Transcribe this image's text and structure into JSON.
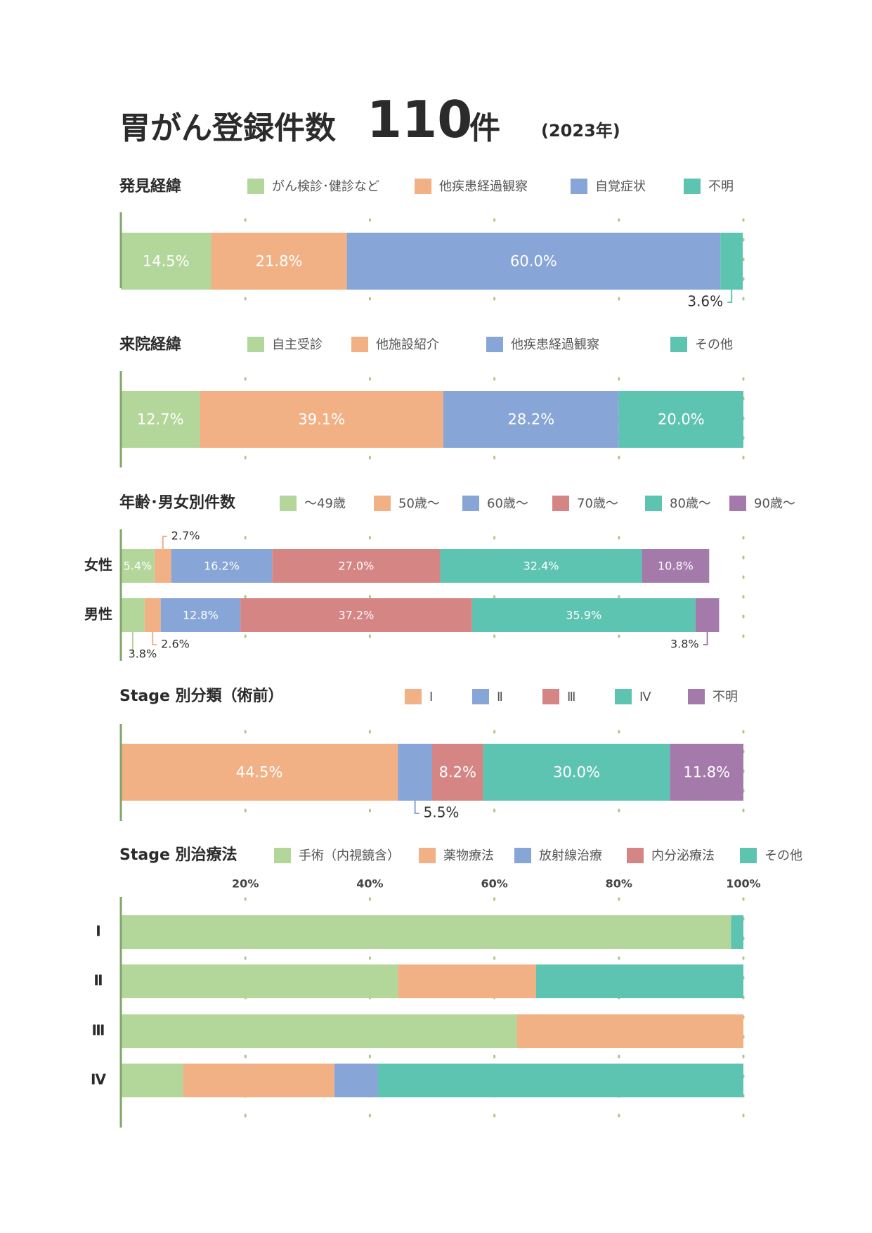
{
  "title": {
    "main": "胃がん登録件数",
    "count": "110",
    "unit": "件",
    "year": "(2023年)"
  },
  "chart_data": [
    {
      "id": "discovery",
      "type": "bar",
      "orientation": "horizontal-stacked",
      "title": "発見経緯",
      "legend": [
        {
          "label": "がん検診･健診など",
          "color": "#b3d69b"
        },
        {
          "label": "他疾患経過観察",
          "color": "#f2b184"
        },
        {
          "label": "自覚症状",
          "color": "#87a5d6"
        },
        {
          "label": "不明",
          "color": "#5ec4b2"
        }
      ],
      "rows": [
        {
          "label": "",
          "values": [
            14.5,
            21.8,
            60.0,
            3.6
          ],
          "labels": [
            "14.5%",
            "21.8%",
            "60.0%",
            "3.6%"
          ]
        }
      ],
      "xlim": [
        0,
        100
      ]
    },
    {
      "id": "visit",
      "type": "bar",
      "orientation": "horizontal-stacked",
      "title": "来院経緯",
      "legend": [
        {
          "label": "自主受診",
          "color": "#b3d69b"
        },
        {
          "label": "他施設紹介",
          "color": "#f2b184"
        },
        {
          "label": "他疾患経過観察",
          "color": "#87a5d6"
        },
        {
          "label": "その他",
          "color": "#5ec4b2"
        }
      ],
      "rows": [
        {
          "label": "",
          "values": [
            12.7,
            39.1,
            28.2,
            20.0
          ],
          "labels": [
            "12.7%",
            "39.1%",
            "28.2%",
            "20.0%"
          ]
        }
      ],
      "xlim": [
        0,
        100
      ]
    },
    {
      "id": "agesex",
      "type": "bar",
      "orientation": "horizontal-stacked",
      "title": "年齢･男女別件数",
      "legend": [
        {
          "label": "～49歳",
          "color": "#b3d69b"
        },
        {
          "label": "50歳～",
          "color": "#f2b184"
        },
        {
          "label": "60歳～",
          "color": "#87a5d6"
        },
        {
          "label": "70歳～",
          "color": "#d68585"
        },
        {
          "label": "80歳～",
          "color": "#5ec4b2"
        },
        {
          "label": "90歳～",
          "color": "#a47aab"
        }
      ],
      "rows": [
        {
          "label": "女性",
          "values": [
            5.4,
            2.7,
            16.2,
            27.0,
            32.4,
            10.8
          ],
          "labels": [
            "5.4%",
            "2.7%",
            "16.2%",
            "27.0%",
            "32.4%",
            "10.8%"
          ]
        },
        {
          "label": "男性",
          "values": [
            3.8,
            2.6,
            12.8,
            37.2,
            35.9,
            3.8
          ],
          "labels": [
            "3.8%",
            "2.6%",
            "12.8%",
            "37.2%",
            "35.9%",
            "3.8%"
          ]
        }
      ],
      "xlim": [
        0,
        100
      ]
    },
    {
      "id": "stage",
      "type": "bar",
      "orientation": "horizontal-stacked",
      "title": "Stage 別分類（術前）",
      "legend": [
        {
          "label": "Ⅰ",
          "color": "#f2b184"
        },
        {
          "label": "Ⅱ",
          "color": "#87a5d6"
        },
        {
          "label": "Ⅲ",
          "color": "#d68585"
        },
        {
          "label": "Ⅳ",
          "color": "#5ec4b2"
        },
        {
          "label": "不明",
          "color": "#a47aab"
        }
      ],
      "rows": [
        {
          "label": "",
          "values": [
            44.5,
            5.5,
            8.2,
            30.0,
            11.8
          ],
          "labels": [
            "44.5%",
            "5.5%",
            "8.2%",
            "30.0%",
            "11.8%"
          ]
        }
      ],
      "xlim": [
        0,
        100
      ]
    },
    {
      "id": "treatment",
      "type": "bar",
      "orientation": "horizontal-stacked",
      "title": "Stage 別治療法",
      "legend": [
        {
          "label": "手術（内視鏡含）",
          "color": "#b3d69b"
        },
        {
          "label": "薬物療法",
          "color": "#f2b184"
        },
        {
          "label": "放射線治療",
          "color": "#87a5d6"
        },
        {
          "label": "内分泌療法",
          "color": "#d68585"
        },
        {
          "label": "その他",
          "color": "#5ec4b2"
        }
      ],
      "x_ticks": [
        "20%",
        "40%",
        "60%",
        "80%",
        "100%"
      ],
      "rows": [
        {
          "label": "Ⅰ",
          "values": [
            98,
            0,
            0,
            0,
            2
          ]
        },
        {
          "label": "Ⅱ",
          "values": [
            44.5,
            22.2,
            0,
            0,
            33.3
          ]
        },
        {
          "label": "Ⅲ",
          "values": [
            63.6,
            36.4,
            0,
            0,
            0
          ]
        },
        {
          "label": "Ⅳ",
          "values": [
            10,
            24.3,
            7,
            0,
            58.7
          ]
        }
      ],
      "xlim": [
        0,
        100
      ]
    }
  ]
}
